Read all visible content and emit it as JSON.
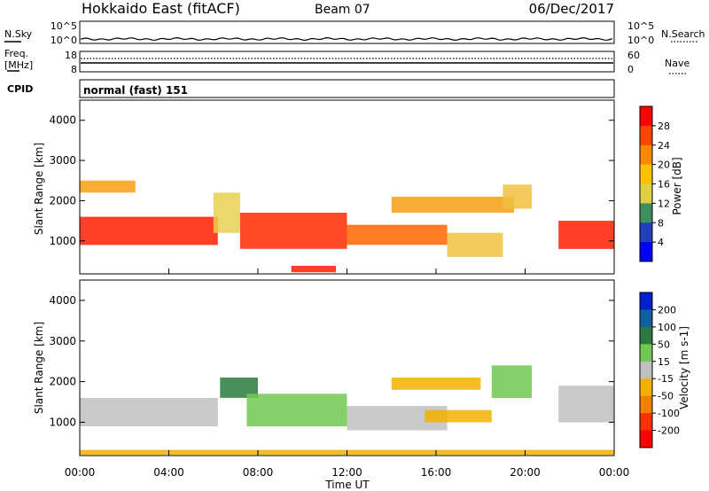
{
  "header": {
    "title": "Hokkaido East (fitACF)",
    "beam": "Beam 07",
    "date": "06/Dec/2017"
  },
  "top_panels": {
    "nsky_label": "N.Sky",
    "nsearch_label": "N.Search",
    "noise_ticks": [
      "10^5",
      "10^0"
    ],
    "freq_label": "Freq.",
    "freq_unit": "[MHz]",
    "freq_ticks": [
      "18",
      "8"
    ],
    "nave_label": "Nave",
    "nave_ticks": [
      "60",
      "0"
    ],
    "cpid_label": "CPID",
    "cpid_text": "normal (fast) 151"
  },
  "chart_data": [
    {
      "type": "heatmap",
      "panel": "power",
      "title": "",
      "ylabel": "Slant Range [km]",
      "xlabel": "",
      "ylim": [
        180,
        4500
      ],
      "yticks": [
        1000,
        2000,
        3000,
        4000
      ],
      "xlim": [
        0,
        24
      ],
      "colorbar_label": "Power [dB]",
      "colorbar_ticks": [
        "28",
        "24",
        "20",
        "16",
        "12",
        "8",
        "4"
      ],
      "colorbar_colors": [
        "#ff0000",
        "#ff4400",
        "#ff8800",
        "#ffc000",
        "#e0d040",
        "#3e8e5e",
        "#2040c0",
        "#0000ff"
      ],
      "echo_bands": [
        {
          "t0": 0.0,
          "t1": 6.2,
          "r0": 900,
          "r1": 1600,
          "color": "#ff1e00"
        },
        {
          "t0": 6.0,
          "t1": 7.2,
          "r0": 1200,
          "r1": 2200,
          "color": "#e8d050"
        },
        {
          "t0": 7.2,
          "t1": 12.0,
          "r0": 800,
          "r1": 1700,
          "color": "#ff2a00"
        },
        {
          "t0": 12.0,
          "t1": 16.5,
          "r0": 900,
          "r1": 1400,
          "color": "#ff6600"
        },
        {
          "t0": 16.5,
          "t1": 19.0,
          "r0": 600,
          "r1": 1200,
          "color": "#f0c040"
        },
        {
          "t0": 14.0,
          "t1": 19.5,
          "r0": 1700,
          "r1": 2100,
          "color": "#f6a010"
        },
        {
          "t0": 19.0,
          "t1": 20.3,
          "r0": 1800,
          "r1": 2400,
          "color": "#f0c040"
        },
        {
          "t0": 21.5,
          "t1": 24.0,
          "r0": 800,
          "r1": 1500,
          "color": "#ff1e00"
        },
        {
          "t0": 9.5,
          "t1": 11.5,
          "r0": 220,
          "r1": 380,
          "color": "#ff1e00"
        },
        {
          "t0": 0.0,
          "t1": 2.5,
          "r0": 2200,
          "r1": 2500,
          "color": "#f6a010"
        }
      ]
    },
    {
      "type": "heatmap",
      "panel": "velocity",
      "title": "",
      "ylabel": "Slant Range [km]",
      "xlabel": "Time UT",
      "ylim": [
        180,
        4500
      ],
      "yticks": [
        1000,
        2000,
        3000,
        4000
      ],
      "xlim": [
        0,
        24
      ],
      "xticks": [
        "00:00",
        "04:00",
        "08:00",
        "12:00",
        "16:00",
        "20:00",
        "00:00"
      ],
      "colorbar_label": "Velocity [m s-1]",
      "colorbar_ticks": [
        "200",
        "100",
        "50",
        "15",
        "-15",
        "-50",
        "-100",
        "-200"
      ],
      "colorbar_colors": [
        "#0020d0",
        "#1060a0",
        "#2a7a40",
        "#70c850",
        "#c0c0c0",
        "#f4b000",
        "#f48000",
        "#ff3000",
        "#ff0000"
      ],
      "echo_bands": [
        {
          "t0": 0.0,
          "t1": 6.2,
          "r0": 900,
          "r1": 1600,
          "color": "#c0c0c0"
        },
        {
          "t0": 6.3,
          "t1": 8.0,
          "r0": 1600,
          "r1": 2100,
          "color": "#2a7a40"
        },
        {
          "t0": 7.5,
          "t1": 12.0,
          "r0": 900,
          "r1": 1700,
          "color": "#70c850"
        },
        {
          "t0": 12.0,
          "t1": 16.5,
          "r0": 800,
          "r1": 1400,
          "color": "#c0c0c0"
        },
        {
          "t0": 15.5,
          "t1": 18.5,
          "r0": 1000,
          "r1": 1300,
          "color": "#f4b000"
        },
        {
          "t0": 14.0,
          "t1": 18.0,
          "r0": 1800,
          "r1": 2100,
          "color": "#f4b000"
        },
        {
          "t0": 18.5,
          "t1": 20.3,
          "r0": 1600,
          "r1": 2400,
          "color": "#70c850"
        },
        {
          "t0": 21.5,
          "t1": 24.0,
          "r0": 1000,
          "r1": 1900,
          "color": "#c0c0c0"
        },
        {
          "t0": 0.0,
          "t1": 24.0,
          "r0": 200,
          "r1": 320,
          "color": "#f4b000"
        }
      ]
    }
  ]
}
